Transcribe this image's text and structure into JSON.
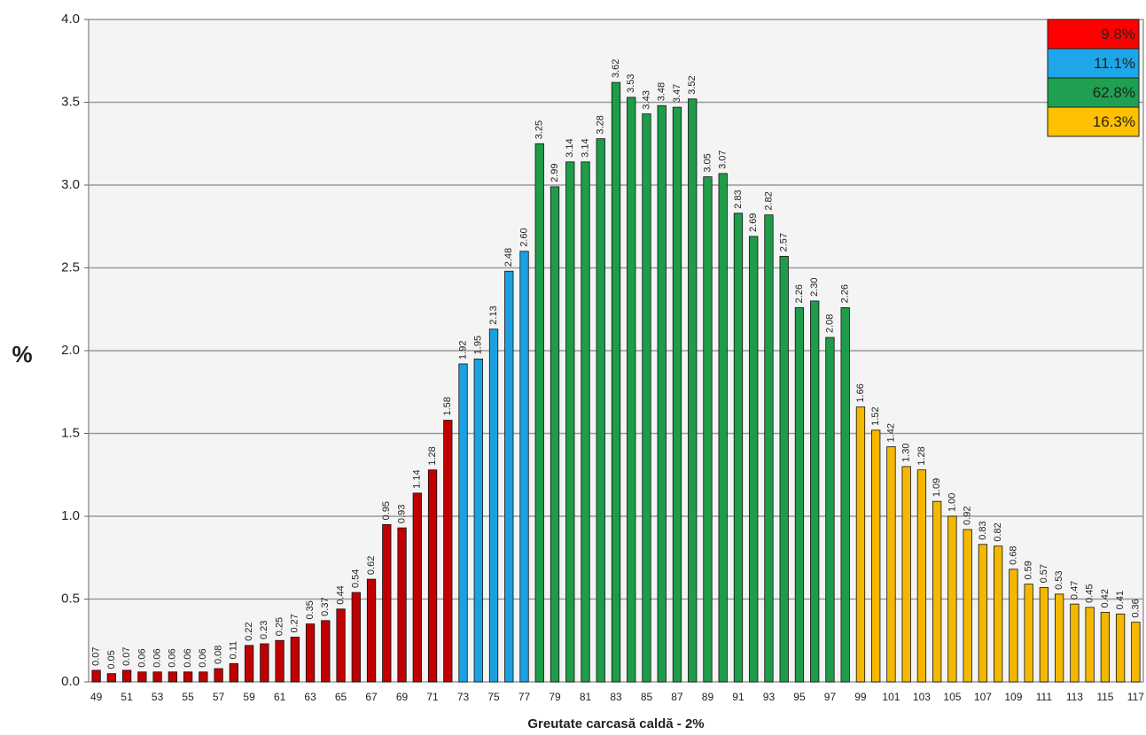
{
  "chart_data": {
    "type": "bar",
    "xlabel": "Greutate carcasă caldă - 2%",
    "ylabel": "%",
    "categories": [
      49,
      null,
      51,
      null,
      53,
      null,
      55,
      null,
      57,
      null,
      59,
      null,
      61,
      null,
      63,
      null,
      65,
      null,
      67,
      null,
      69,
      null,
      71,
      null,
      73,
      null,
      75,
      null,
      77,
      null,
      79,
      null,
      81,
      null,
      83,
      null,
      85,
      null,
      87,
      null,
      89,
      null,
      91,
      null,
      93,
      null,
      95,
      null,
      97,
      null,
      99,
      null,
      101,
      null,
      103,
      null,
      105,
      null,
      107,
      null,
      109,
      null,
      111,
      null,
      113,
      null,
      115,
      null,
      117
    ],
    "values": [
      0.07,
      0.05,
      0.07,
      0.06,
      0.06,
      0.06,
      0.06,
      0.06,
      0.08,
      0.11,
      0.22,
      0.23,
      0.25,
      0.27,
      0.35,
      0.37,
      0.44,
      0.54,
      0.62,
      0.95,
      0.93,
      1.14,
      1.28,
      1.58,
      1.92,
      1.95,
      2.13,
      2.48,
      2.6,
      3.25,
      2.99,
      3.14,
      3.14,
      3.28,
      3.62,
      3.53,
      3.43,
      3.48,
      3.47,
      3.52,
      3.05,
      3.07,
      2.83,
      2.69,
      2.82,
      2.57,
      2.26,
      2.3,
      2.08,
      2.26,
      1.66,
      1.52,
      1.42,
      1.3,
      1.28,
      1.09,
      1.0,
      0.92,
      0.83,
      0.82,
      0.68,
      0.59,
      0.57,
      0.53,
      0.47,
      0.45,
      0.42,
      0.41,
      0.36
    ],
    "value_labels": [
      "0.07",
      "0.05",
      "0.07",
      "0.06",
      "0.06",
      "0.06",
      "0.06",
      "0.06",
      "0.08",
      "0.11",
      "0.22",
      "0.23",
      "0.25",
      "0.27",
      "0.35",
      "0.37",
      "0.44",
      "0.54",
      "0.62",
      "0.95",
      "0.93",
      "1.14",
      "1.28",
      "1.58",
      "1.92",
      "1.95",
      "2.13",
      "2.48",
      "2.60",
      "3.25",
      "2.99",
      "3.14",
      "3.14",
      "3.28",
      "3.62",
      "3.53",
      "3.43",
      "3.48",
      "3.47",
      "3.52",
      "3.05",
      "3.07",
      "2.83",
      "2.69",
      "2.82",
      "2.57",
      "2.26",
      "2.30",
      "2.08",
      "2.26",
      "1.66",
      "1.52",
      "1.42",
      "1.30",
      "1.28",
      "1.09",
      "1.00",
      "0.92",
      "0.83",
      "0.82",
      "0.68",
      "0.59",
      "0.57",
      "0.53",
      "0.47",
      "0.45",
      "0.42",
      "0.41",
      "0.36"
    ],
    "colors": [
      "#c00000",
      "#c00000",
      "#c00000",
      "#c00000",
      "#c00000",
      "#c00000",
      "#c00000",
      "#c00000",
      "#c00000",
      "#c00000",
      "#c00000",
      "#c00000",
      "#c00000",
      "#c00000",
      "#c00000",
      "#c00000",
      "#c00000",
      "#c00000",
      "#c00000",
      "#c00000",
      "#c00000",
      "#c00000",
      "#c00000",
      "#c00000",
      "#1ba1e2",
      "#1ba1e2",
      "#1ba1e2",
      "#1ba1e2",
      "#1ba1e2",
      "#1e9c4a",
      "#1e9c4a",
      "#1e9c4a",
      "#1e9c4a",
      "#1e9c4a",
      "#1e9c4a",
      "#1e9c4a",
      "#1e9c4a",
      "#1e9c4a",
      "#1e9c4a",
      "#1e9c4a",
      "#1e9c4a",
      "#1e9c4a",
      "#1e9c4a",
      "#1e9c4a",
      "#1e9c4a",
      "#1e9c4a",
      "#1e9c4a",
      "#1e9c4a",
      "#1e9c4a",
      "#1e9c4a",
      "#f5b800",
      "#f5b800",
      "#f5b800",
      "#f5b800",
      "#f5b800",
      "#f5b800",
      "#f5b800",
      "#f5b800",
      "#f5b800",
      "#f5b800",
      "#f5b800",
      "#f5b800",
      "#f5b800",
      "#f5b800",
      "#f5b800",
      "#f5b800",
      "#f5b800",
      "#f5b800",
      "#f5b800"
    ],
    "legend": [
      {
        "value": 9.8,
        "label": "9.8%",
        "color": "#ff0000"
      },
      {
        "value": 11.1,
        "label": "11.1%",
        "color": "#1ea7e8"
      },
      {
        "value": 62.8,
        "label": "62.8%",
        "color": "#1ea050"
      },
      {
        "value": 16.3,
        "label": "16.3%",
        "color": "#ffc000"
      }
    ],
    "ylim": [
      0,
      4
    ],
    "yticks": [
      {
        "value": 0,
        "label": "0.0"
      },
      {
        "value": 0.5,
        "label": "0.5"
      },
      {
        "value": 1,
        "label": "1.0"
      },
      {
        "value": 1.5,
        "label": "1.5"
      },
      {
        "value": 2,
        "label": "2.0"
      },
      {
        "value": 2.5,
        "label": "2.5"
      },
      {
        "value": 3,
        "label": "3.0"
      },
      {
        "value": 3.5,
        "label": "3.5"
      },
      {
        "value": 4,
        "label": "4.0"
      }
    ],
    "grid": true
  }
}
